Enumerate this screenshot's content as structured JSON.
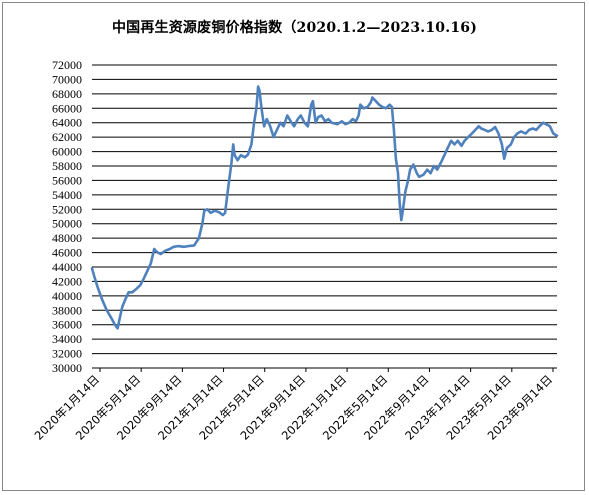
{
  "chart_data": {
    "type": "line",
    "title": "中国再生资源废铜价格指数（2020.1.2—2023.10.16)",
    "xlabel": "",
    "ylabel": "",
    "ylim": [
      30000,
      72000
    ],
    "ytick_step": 2000,
    "grid": "horizontal",
    "legend": "none",
    "x_ticks": [
      "2020年1月14日",
      "2020年5月14日",
      "2020年9月14日",
      "2021年1月14日",
      "2021年5月14日",
      "2021年9月14日",
      "2022年1月14日",
      "2022年5月14日",
      "2022年9月14日",
      "2023年1月14日",
      "2023年5月14日",
      "2023年9月14日"
    ],
    "x_range": [
      "2020-01-02",
      "2023-10-16"
    ],
    "series": [
      {
        "color": "#4f81bd",
        "points": [
          [
            "2020-01-02",
            43800
          ],
          [
            "2020-01-10",
            42500
          ],
          [
            "2020-01-20",
            41000
          ],
          [
            "2020-02-01",
            39500
          ],
          [
            "2020-02-15",
            38000
          ],
          [
            "2020-03-01",
            36800
          ],
          [
            "2020-03-10",
            36000
          ],
          [
            "2020-03-18",
            35500
          ],
          [
            "2020-03-25",
            37000
          ],
          [
            "2020-04-01",
            38500
          ],
          [
            "2020-04-10",
            39500
          ],
          [
            "2020-04-20",
            40500
          ],
          [
            "2020-05-01",
            40500
          ],
          [
            "2020-05-14",
            41000
          ],
          [
            "2020-05-25",
            41500
          ],
          [
            "2020-06-05",
            42500
          ],
          [
            "2020-06-15",
            43500
          ],
          [
            "2020-06-25",
            44500
          ],
          [
            "2020-07-05",
            46500
          ],
          [
            "2020-07-15",
            46000
          ],
          [
            "2020-07-25",
            45800
          ],
          [
            "2020-08-05",
            46200
          ],
          [
            "2020-08-20",
            46500
          ],
          [
            "2020-09-01",
            46800
          ],
          [
            "2020-09-14",
            46900
          ],
          [
            "2020-10-01",
            46800
          ],
          [
            "2020-10-15",
            46900
          ],
          [
            "2020-11-01",
            47000
          ],
          [
            "2020-11-15",
            48000
          ],
          [
            "2020-11-25",
            50000
          ],
          [
            "2020-12-01",
            51800
          ],
          [
            "2020-12-10",
            52000
          ],
          [
            "2020-12-20",
            51500
          ],
          [
            "2021-01-01",
            51800
          ],
          [
            "2021-01-14",
            51600
          ],
          [
            "2021-01-25",
            51200
          ],
          [
            "2021-02-01",
            51500
          ],
          [
            "2021-02-10",
            55000
          ],
          [
            "2021-02-20",
            58500
          ],
          [
            "2021-02-25",
            61000
          ],
          [
            "2021-03-01",
            59500
          ],
          [
            "2021-03-10",
            58800
          ],
          [
            "2021-03-20",
            59500
          ],
          [
            "2021-04-01",
            59200
          ],
          [
            "2021-04-10",
            59600
          ],
          [
            "2021-04-20",
            61000
          ],
          [
            "2021-04-28",
            64000
          ],
          [
            "2021-05-05",
            66000
          ],
          [
            "2021-05-10",
            69000
          ],
          [
            "2021-05-14",
            68500
          ],
          [
            "2021-05-20",
            66000
          ],
          [
            "2021-05-28",
            63500
          ],
          [
            "2021-06-05",
            64500
          ],
          [
            "2021-06-15",
            63500
          ],
          [
            "2021-06-25",
            62000
          ],
          [
            "2021-07-05",
            63000
          ],
          [
            "2021-07-15",
            64000
          ],
          [
            "2021-07-25",
            63500
          ],
          [
            "2021-08-05",
            65000
          ],
          [
            "2021-08-15",
            64200
          ],
          [
            "2021-08-25",
            63500
          ],
          [
            "2021-09-05",
            64500
          ],
          [
            "2021-09-14",
            65000
          ],
          [
            "2021-09-25",
            64000
          ],
          [
            "2021-10-05",
            63500
          ],
          [
            "2021-10-15",
            66500
          ],
          [
            "2021-10-20",
            67000
          ],
          [
            "2021-10-28",
            64000
          ],
          [
            "2021-11-05",
            64800
          ],
          [
            "2021-11-15",
            65000
          ],
          [
            "2021-11-25",
            64200
          ],
          [
            "2021-12-05",
            64500
          ],
          [
            "2021-12-15",
            64000
          ],
          [
            "2022-01-01",
            63800
          ],
          [
            "2022-01-14",
            64200
          ],
          [
            "2022-01-25",
            63800
          ],
          [
            "2022-02-05",
            64000
          ],
          [
            "2022-02-15",
            64500
          ],
          [
            "2022-02-25",
            64200
          ],
          [
            "2022-03-05",
            65000
          ],
          [
            "2022-03-10",
            66500
          ],
          [
            "2022-03-20",
            66000
          ],
          [
            "2022-04-01",
            66200
          ],
          [
            "2022-04-10",
            66800
          ],
          [
            "2022-04-15",
            67500
          ],
          [
            "2022-04-25",
            67000
          ],
          [
            "2022-05-05",
            66500
          ],
          [
            "2022-05-14",
            66200
          ],
          [
            "2022-05-25",
            66000
          ],
          [
            "2022-06-05",
            66500
          ],
          [
            "2022-06-12",
            66200
          ],
          [
            "2022-06-18",
            63000
          ],
          [
            "2022-06-24",
            59000
          ],
          [
            "2022-06-30",
            57000
          ],
          [
            "2022-07-05",
            53000
          ],
          [
            "2022-07-10",
            50500
          ],
          [
            "2022-07-15",
            52000
          ],
          [
            "2022-07-22",
            54500
          ],
          [
            "2022-07-30",
            56000
          ],
          [
            "2022-08-05",
            57500
          ],
          [
            "2022-08-15",
            58200
          ],
          [
            "2022-08-25",
            57000
          ],
          [
            "2022-09-01",
            56500
          ],
          [
            "2022-09-14",
            56800
          ],
          [
            "2022-09-25",
            57500
          ],
          [
            "2022-10-05",
            57000
          ],
          [
            "2022-10-15",
            58000
          ],
          [
            "2022-10-25",
            57500
          ],
          [
            "2022-11-05",
            58500
          ],
          [
            "2022-11-15",
            59500
          ],
          [
            "2022-11-25",
            60500
          ],
          [
            "2022-12-05",
            61500
          ],
          [
            "2022-12-15",
            61000
          ],
          [
            "2022-12-25",
            61500
          ],
          [
            "2023-01-05",
            60800
          ],
          [
            "2023-01-14",
            61500
          ],
          [
            "2023-01-25",
            62000
          ],
          [
            "2023-02-05",
            62500
          ],
          [
            "2023-02-15",
            63000
          ],
          [
            "2023-02-25",
            63500
          ],
          [
            "2023-03-05",
            63200
          ],
          [
            "2023-03-15",
            63000
          ],
          [
            "2023-03-25",
            62800
          ],
          [
            "2023-04-05",
            63000
          ],
          [
            "2023-04-15",
            63400
          ],
          [
            "2023-04-25",
            62500
          ],
          [
            "2023-05-05",
            61000
          ],
          [
            "2023-05-12",
            59000
          ],
          [
            "2023-05-20",
            60500
          ],
          [
            "2023-06-01",
            61000
          ],
          [
            "2023-06-10",
            62000
          ],
          [
            "2023-06-20",
            62500
          ],
          [
            "2023-07-01",
            62800
          ],
          [
            "2023-07-15",
            62500
          ],
          [
            "2023-07-25",
            63000
          ],
          [
            "2023-08-05",
            63200
          ],
          [
            "2023-08-15",
            63000
          ],
          [
            "2023-08-25",
            63500
          ],
          [
            "2023-09-05",
            64000
          ],
          [
            "2023-09-14",
            63800
          ],
          [
            "2023-09-25",
            63500
          ],
          [
            "2023-10-05",
            62500
          ],
          [
            "2023-10-16",
            62200
          ]
        ]
      }
    ]
  }
}
